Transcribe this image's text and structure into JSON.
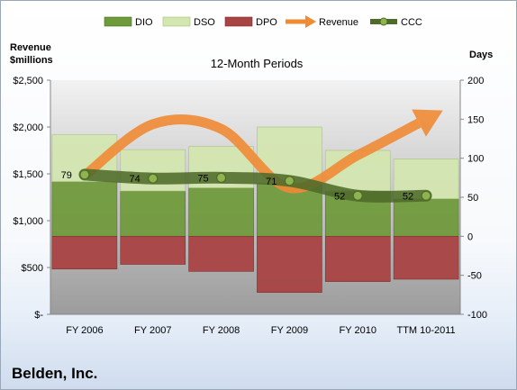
{
  "company": "Belden, Inc.",
  "chart_data": {
    "type": "bar",
    "title": "12-Month Periods",
    "left_axis_label_line1": "Revenue",
    "left_axis_label_line2": "$millions",
    "right_axis_label": "Days",
    "categories": [
      "FY 2006",
      "FY 2007",
      "FY 2008",
      "FY 2009",
      "FY 2010",
      "TTM 10-2011"
    ],
    "left_axis": {
      "range": [
        0,
        2500
      ],
      "ticks": [
        "$-",
        "$500",
        "$1,000",
        "$1,500",
        "$2,000",
        "$2,500"
      ]
    },
    "right_axis": {
      "range": [
        -100,
        200
      ],
      "ticks": [
        "-100",
        "-50",
        "0",
        "50",
        "100",
        "150",
        "200"
      ]
    },
    "series": [
      {
        "name": "DIO",
        "values": [
          70,
          58,
          62,
          68,
          58,
          48
        ],
        "color": "#6f9a3a"
      },
      {
        "name": "DSO",
        "values": [
          60,
          53,
          53,
          72,
          52,
          51
        ],
        "color": "#d4e7b0"
      },
      {
        "name": "DPO",
        "values": [
          -42,
          -36,
          -45,
          -72,
          -58,
          -55
        ],
        "color": "#a94444"
      },
      {
        "name": "Revenue",
        "values": [
          1480,
          2030,
          1980,
          1350,
          1700,
          2100
        ],
        "color": "#f08a35"
      },
      {
        "name": "CCC",
        "values": [
          79,
          74,
          75,
          71,
          52,
          52
        ],
        "color": "#4e6b2a"
      }
    ],
    "data_labels": [
      "79",
      "74",
      "75",
      "71",
      "52",
      "52"
    ],
    "grid": false,
    "legend_position": "top"
  }
}
